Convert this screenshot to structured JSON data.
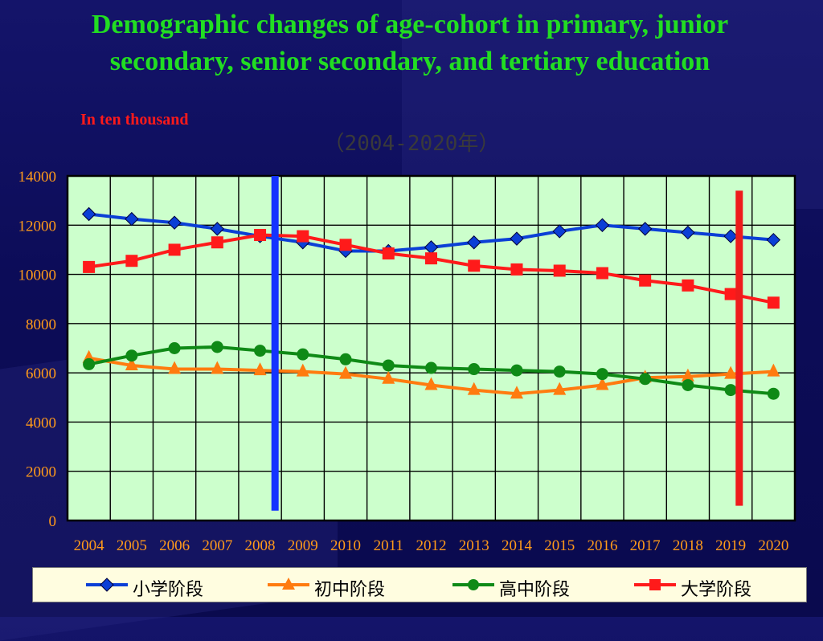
{
  "slide": {
    "title": "Demographic changes of age-cohort in primary, junior secondary, senior secondary, and tertiary education",
    "unit": "In ten thousand",
    "years_caption": "（2004-2020年）"
  },
  "colors": {
    "primary": "#0b3fd6",
    "junior": "#ff7b0f",
    "senior": "#0f8a16",
    "tertiary": "#ff1a1a",
    "plot_bg": "#ccffcc",
    "grid": "#000000",
    "blue_marker": "#1433ff",
    "red_marker": "#ee1c1c"
  },
  "chart_data": {
    "type": "line",
    "title": "Demographic changes of age-cohort in primary, junior secondary, senior secondary, and tertiary education",
    "ylabel": "In ten thousand",
    "ylim": [
      0,
      14000
    ],
    "yticks": [
      0,
      2000,
      4000,
      6000,
      8000,
      10000,
      12000,
      14000
    ],
    "grid": true,
    "legend_position": "bottom",
    "categories": [
      "2004",
      "2005",
      "2006",
      "2007",
      "2008",
      "2009",
      "2010",
      "2011",
      "2012",
      "2013",
      "2014",
      "2015",
      "2016",
      "2017",
      "2018",
      "2019",
      "2020"
    ],
    "series": [
      {
        "name": "小学阶段",
        "marker": "diamond",
        "color": "#0b3fd6",
        "values": [
          12450,
          12250,
          12100,
          11850,
          11550,
          11300,
          10950,
          10950,
          11100,
          11300,
          11450,
          11750,
          12000,
          11850,
          11700,
          11550,
          11400
        ]
      },
      {
        "name": "初中阶段",
        "marker": "triangle",
        "color": "#ff7b0f",
        "values": [
          6600,
          6300,
          6150,
          6150,
          6100,
          6050,
          5950,
          5750,
          5500,
          5300,
          5150,
          5300,
          5500,
          5800,
          5850,
          5950,
          6050
        ]
      },
      {
        "name": "高中阶段",
        "marker": "circle",
        "color": "#0f8a16",
        "values": [
          6350,
          6700,
          7000,
          7050,
          6900,
          6750,
          6550,
          6300,
          6200,
          6150,
          6100,
          6050,
          5950,
          5750,
          5500,
          5300,
          5150
        ]
      },
      {
        "name": "大学阶段",
        "marker": "square",
        "color": "#ff1a1a",
        "values": [
          10300,
          10550,
          11000,
          11300,
          11600,
          11550,
          11200,
          10850,
          10650,
          10350,
          10200,
          10150,
          10050,
          9750,
          9550,
          9200,
          8850
        ]
      }
    ],
    "annotations": [
      {
        "type": "vertical-bar",
        "color": "#1433ff",
        "x": 2008.35,
        "y_from": 400,
        "y_to": 14000
      },
      {
        "type": "vertical-bar",
        "color": "#ee1c1c",
        "x": 2019.2,
        "y_from": 600,
        "y_to": 13400
      }
    ]
  }
}
